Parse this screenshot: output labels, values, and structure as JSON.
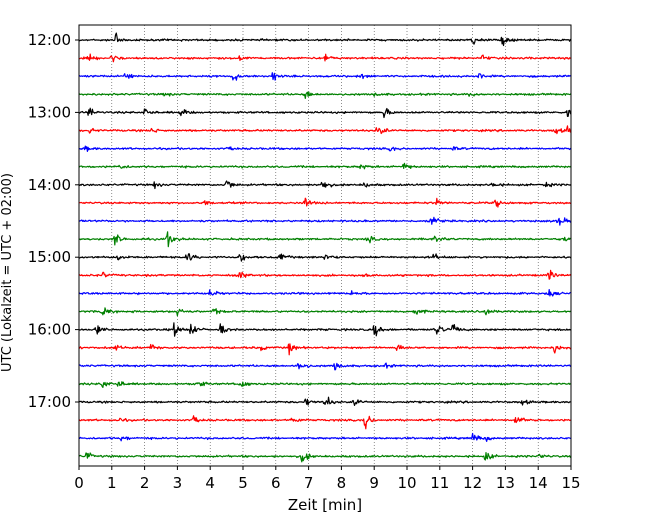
{
  "chart_data": {
    "type": "line",
    "title": "",
    "xlabel": "Zeit  [min]",
    "ylabel": "UTC (Lokalzeit = UTC + 02:00)",
    "xlim": [
      0,
      15
    ],
    "x_ticks": [
      "0",
      "1",
      "2",
      "3",
      "4",
      "5",
      "6",
      "7",
      "8",
      "9",
      "10",
      "11",
      "12",
      "13",
      "14",
      "15"
    ],
    "y_ticks": [
      {
        "label": "12:00",
        "trace": 0
      },
      {
        "label": "13:00",
        "trace": 4
      },
      {
        "label": "14:00",
        "trace": 8
      },
      {
        "label": "15:00",
        "trace": 12
      },
      {
        "label": "16:00",
        "trace": 16
      },
      {
        "label": "17:00",
        "trace": 20
      }
    ],
    "trace_interval_min": 15,
    "start_time": "12:00",
    "grid_x": true,
    "colors": [
      "#000000",
      "#ff0000",
      "#0000ff",
      "#008000"
    ],
    "traces": [
      {
        "start": "12:00",
        "color": "#000000",
        "events": [
          [
            1.1,
            14
          ],
          [
            12.0,
            8
          ],
          [
            12.9,
            11
          ],
          [
            15.0,
            6
          ]
        ]
      },
      {
        "start": "12:15",
        "color": "#ff0000",
        "events": [
          [
            0.3,
            5
          ],
          [
            1.0,
            8
          ],
          [
            4.9,
            4
          ],
          [
            7.5,
            7
          ],
          [
            12.3,
            4
          ]
        ]
      },
      {
        "start": "12:30",
        "color": "#0000ff",
        "events": [
          [
            1.4,
            7
          ],
          [
            4.7,
            10
          ],
          [
            5.9,
            8
          ],
          [
            8.6,
            4
          ],
          [
            12.2,
            4
          ]
        ]
      },
      {
        "start": "12:45",
        "color": "#008000",
        "events": [
          [
            2.6,
            3
          ],
          [
            6.9,
            7
          ],
          [
            9.0,
            3
          ],
          [
            11.9,
            3
          ]
        ]
      },
      {
        "start": "13:00",
        "color": "#000000",
        "events": [
          [
            0.3,
            8
          ],
          [
            2.0,
            8
          ],
          [
            3.1,
            8
          ],
          [
            9.3,
            8
          ],
          [
            14.9,
            9
          ]
        ]
      },
      {
        "start": "13:15",
        "color": "#ff0000",
        "events": [
          [
            0.3,
            4
          ],
          [
            2.2,
            5
          ],
          [
            9.1,
            12
          ],
          [
            14.5,
            8
          ],
          [
            14.9,
            6
          ]
        ]
      },
      {
        "start": "13:30",
        "color": "#0000ff",
        "events": [
          [
            0.2,
            4
          ],
          [
            4.6,
            3
          ],
          [
            9.5,
            4
          ],
          [
            11.4,
            3
          ]
        ]
      },
      {
        "start": "13:45",
        "color": "#008000",
        "events": [
          [
            1.2,
            6
          ],
          [
            8.6,
            5
          ],
          [
            9.9,
            7
          ]
        ]
      },
      {
        "start": "14:00",
        "color": "#000000",
        "events": [
          [
            2.3,
            5
          ],
          [
            4.5,
            10
          ],
          [
            7.4,
            12
          ],
          [
            8.7,
            5
          ],
          [
            12.6,
            6
          ],
          [
            14.2,
            5
          ]
        ]
      },
      {
        "start": "14:15",
        "color": "#ff0000",
        "events": [
          [
            3.8,
            4
          ],
          [
            6.9,
            8
          ],
          [
            10.9,
            5
          ],
          [
            12.7,
            7
          ]
        ]
      },
      {
        "start": "14:30",
        "color": "#0000ff",
        "events": [
          [
            10.7,
            16
          ],
          [
            14.6,
            11
          ]
        ]
      },
      {
        "start": "14:45",
        "color": "#008000",
        "events": [
          [
            1.1,
            10
          ],
          [
            2.7,
            14
          ],
          [
            8.8,
            6
          ],
          [
            10.8,
            12
          ],
          [
            14.8,
            7
          ]
        ]
      },
      {
        "start": "15:00",
        "color": "#000000",
        "events": [
          [
            1.2,
            5
          ],
          [
            3.3,
            10
          ],
          [
            4.9,
            8
          ],
          [
            6.1,
            10
          ],
          [
            7.5,
            8
          ],
          [
            10.8,
            6
          ]
        ]
      },
      {
        "start": "15:15",
        "color": "#ff0000",
        "events": [
          [
            0.7,
            5
          ],
          [
            4.9,
            6
          ],
          [
            8.6,
            5
          ],
          [
            14.3,
            9
          ]
        ]
      },
      {
        "start": "15:30",
        "color": "#0000ff",
        "events": [
          [
            4.0,
            6
          ],
          [
            8.3,
            4
          ],
          [
            14.3,
            7
          ]
        ]
      },
      {
        "start": "15:45",
        "color": "#008000",
        "events": [
          [
            0.7,
            12
          ],
          [
            3.0,
            8
          ],
          [
            4.1,
            6
          ],
          [
            10.2,
            9
          ],
          [
            12.4,
            6
          ]
        ]
      },
      {
        "start": "16:00",
        "color": "#000000",
        "events": [
          [
            0.5,
            9
          ],
          [
            2.9,
            12
          ],
          [
            3.4,
            10
          ],
          [
            4.3,
            9
          ],
          [
            9.0,
            11
          ],
          [
            10.9,
            9
          ],
          [
            11.4,
            9
          ]
        ]
      },
      {
        "start": "16:15",
        "color": "#ff0000",
        "events": [
          [
            1.1,
            7
          ],
          [
            2.2,
            6
          ],
          [
            5.5,
            5
          ],
          [
            6.4,
            9
          ],
          [
            9.7,
            6
          ],
          [
            14.5,
            8
          ]
        ]
      },
      {
        "start": "16:30",
        "color": "#0000ff",
        "events": [
          [
            6.7,
            11
          ],
          [
            7.8,
            9
          ],
          [
            9.3,
            4
          ]
        ]
      },
      {
        "start": "16:45",
        "color": "#008000",
        "events": [
          [
            0.7,
            11
          ],
          [
            1.2,
            6
          ],
          [
            3.6,
            8
          ],
          [
            4.9,
            10
          ]
        ]
      },
      {
        "start": "17:00",
        "color": "#000000",
        "events": [
          [
            6.9,
            7
          ],
          [
            7.5,
            12
          ],
          [
            8.4,
            7
          ],
          [
            13.5,
            5
          ]
        ]
      },
      {
        "start": "17:15",
        "color": "#ff0000",
        "events": [
          [
            1.2,
            4
          ],
          [
            3.5,
            7
          ],
          [
            6.5,
            8
          ],
          [
            8.7,
            16
          ],
          [
            13.3,
            10
          ]
        ]
      },
      {
        "start": "17:30",
        "color": "#0000ff",
        "events": [
          [
            1.3,
            5
          ],
          [
            12.0,
            9
          ],
          [
            12.4,
            4
          ]
        ]
      },
      {
        "start": "17:45",
        "color": "#008000",
        "events": [
          [
            0.2,
            8
          ],
          [
            6.8,
            12
          ],
          [
            12.4,
            8
          ],
          [
            14.0,
            5
          ]
        ]
      }
    ]
  }
}
